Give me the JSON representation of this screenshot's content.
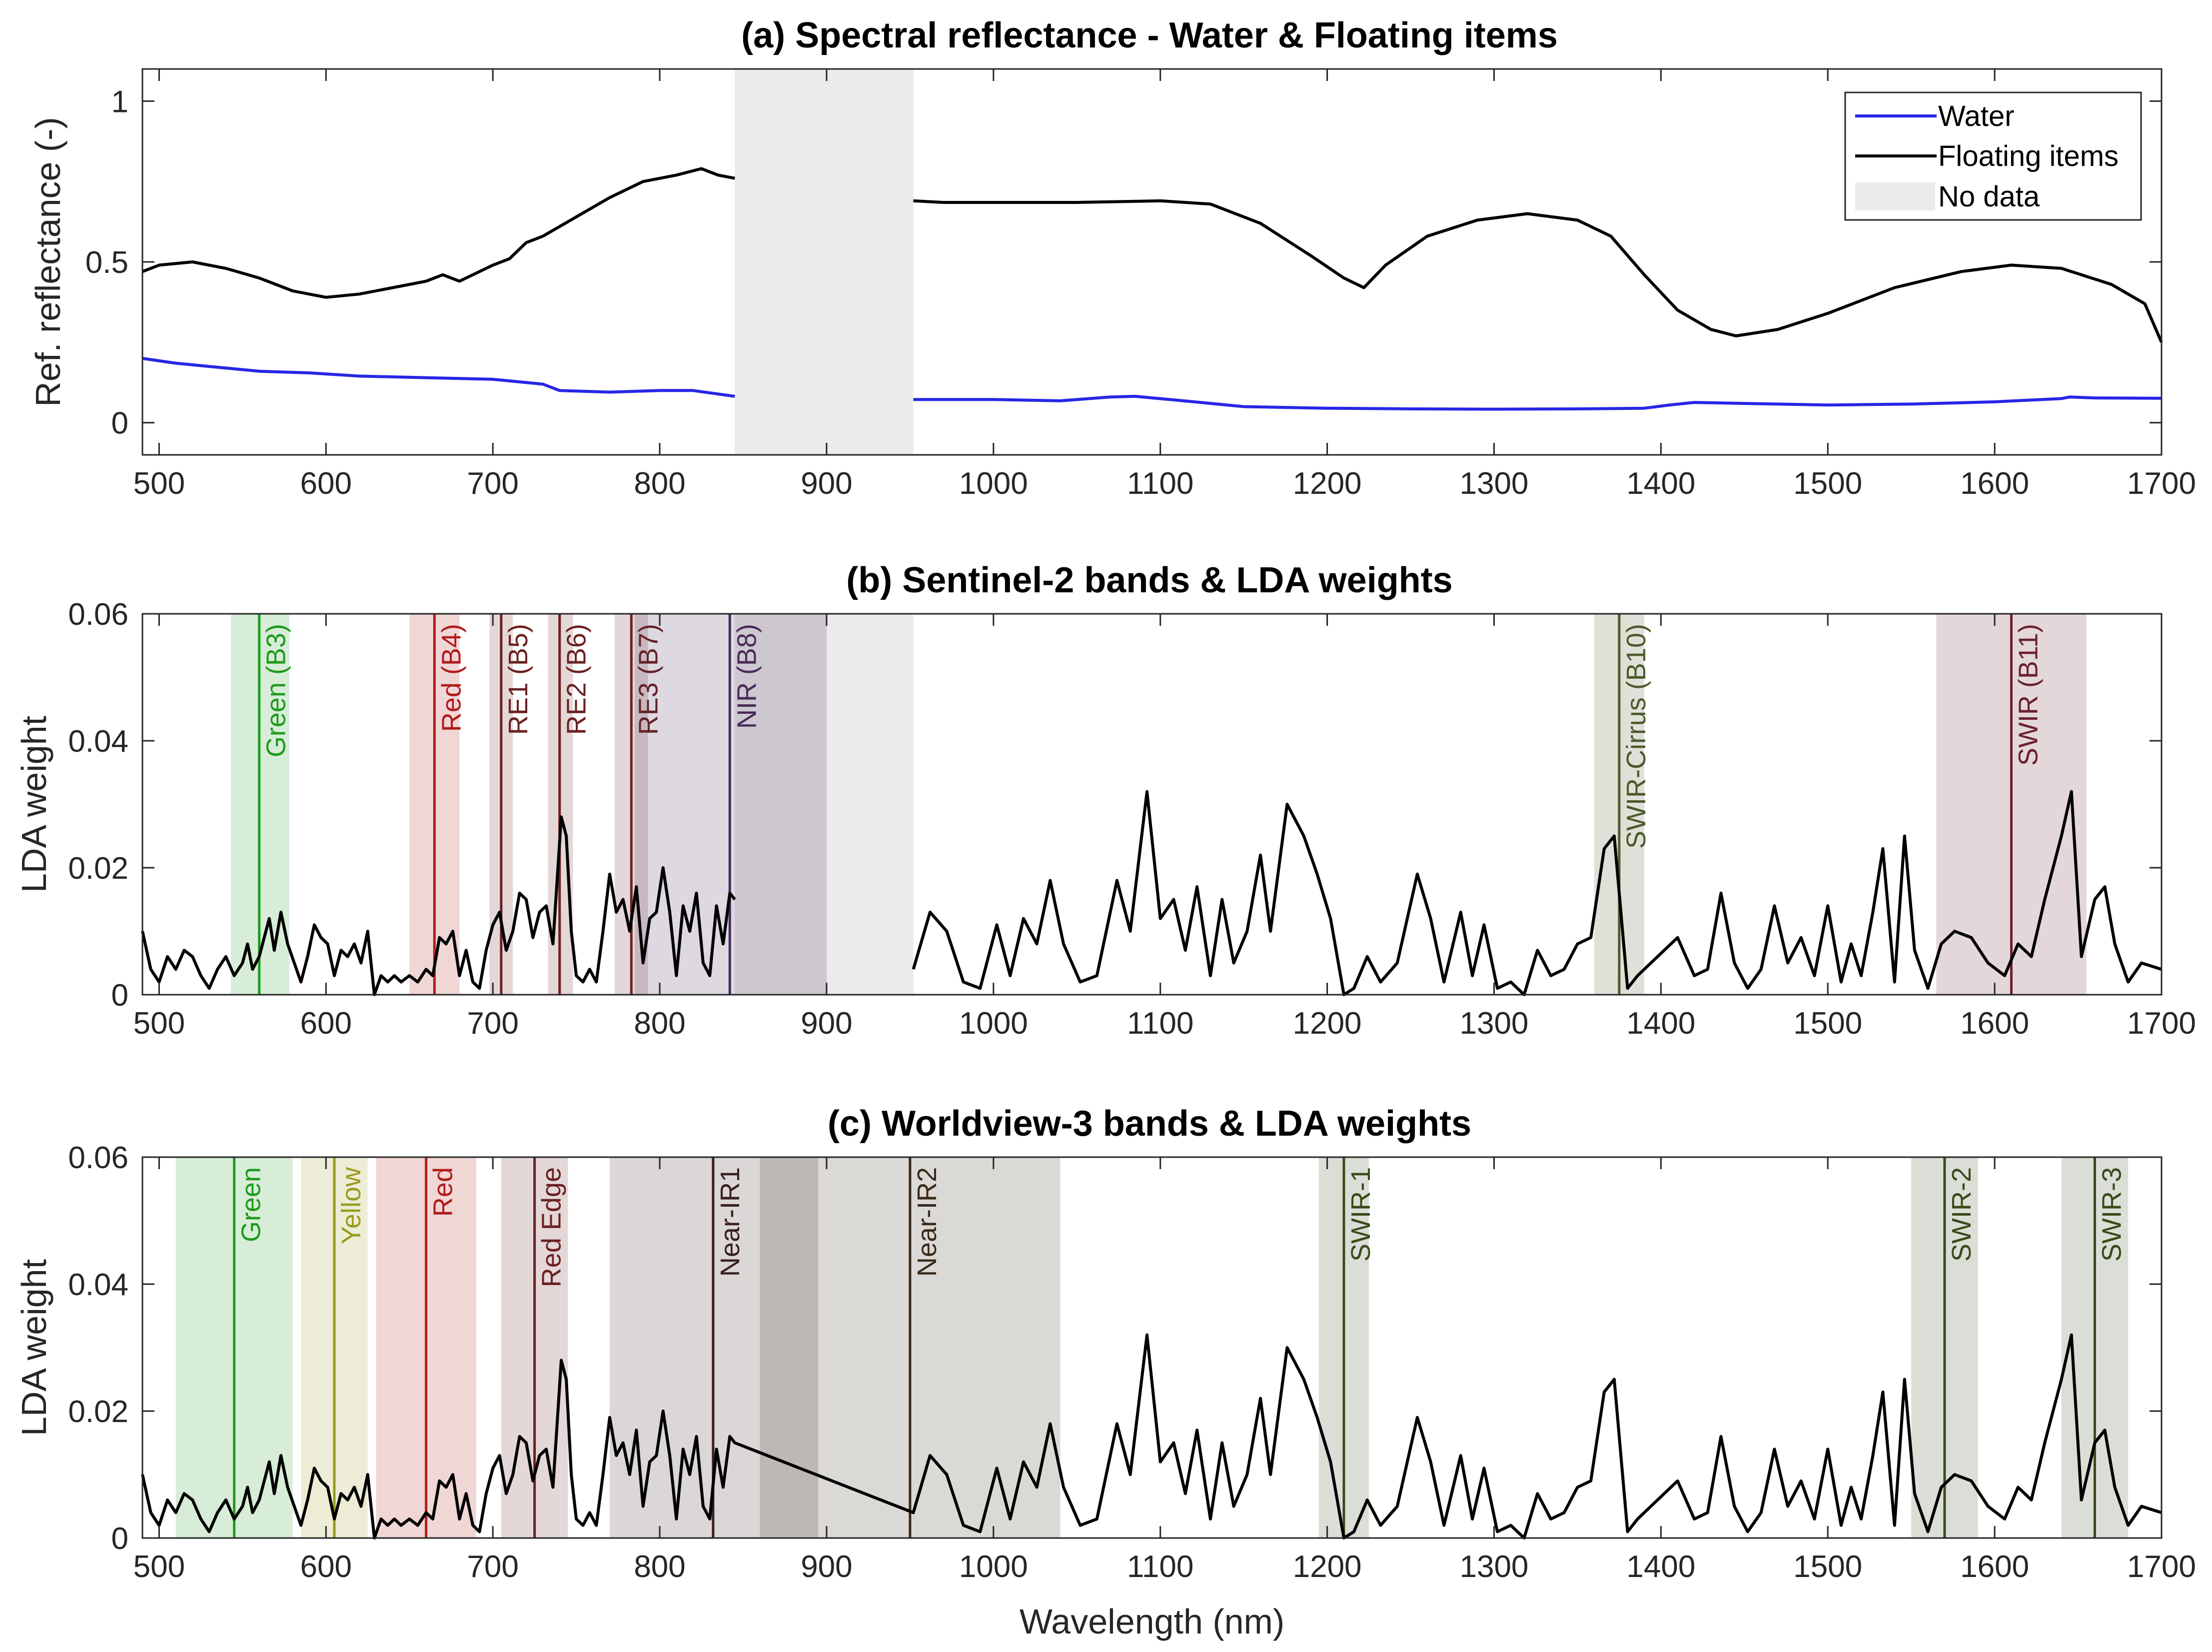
{
  "chart_data": [
    {
      "type": "line",
      "title": "(a) Spectral reflectance - Water & Floating items",
      "xlabel": "",
      "ylabel": "Ref. reflectance (-)",
      "xlim": [
        490,
        1700
      ],
      "ylim": [
        -0.1,
        1.1
      ],
      "xticks": [
        500,
        600,
        700,
        800,
        900,
        1000,
        1100,
        1200,
        1300,
        1400,
        1500,
        1600,
        1700
      ],
      "yticks": [
        0,
        0.5,
        1
      ],
      "ytick_labels": [
        "0",
        "0.5",
        "1"
      ],
      "no_data": [
        845,
        952
      ],
      "legend": [
        "Water",
        "Floating items",
        "No data"
      ],
      "legend_position": "top-right",
      "series": [
        {
          "name": "Water",
          "color": "#2626e6",
          "points": [
            [
              490,
              0.2
            ],
            [
              510,
              0.185
            ],
            [
              530,
              0.175
            ],
            [
              560,
              0.16
            ],
            [
              590,
              0.155
            ],
            [
              620,
              0.145
            ],
            [
              660,
              0.14
            ],
            [
              700,
              0.135
            ],
            [
              730,
              0.12
            ],
            [
              740,
              0.1
            ],
            [
              770,
              0.095
            ],
            [
              800,
              0.1
            ],
            [
              820,
              0.1
            ],
            [
              845,
              0.082
            ],
            [
              952,
              0.072
            ],
            [
              1000,
              0.072
            ],
            [
              1040,
              0.068
            ],
            [
              1070,
              0.08
            ],
            [
              1085,
              0.082
            ],
            [
              1110,
              0.07
            ],
            [
              1150,
              0.05
            ],
            [
              1200,
              0.045
            ],
            [
              1250,
              0.043
            ],
            [
              1300,
              0.042
            ],
            [
              1350,
              0.043
            ],
            [
              1390,
              0.045
            ],
            [
              1405,
              0.055
            ],
            [
              1420,
              0.063
            ],
            [
              1450,
              0.06
            ],
            [
              1500,
              0.055
            ],
            [
              1550,
              0.058
            ],
            [
              1600,
              0.065
            ],
            [
              1640,
              0.075
            ],
            [
              1645,
              0.08
            ],
            [
              1660,
              0.077
            ],
            [
              1700,
              0.076
            ]
          ]
        },
        {
          "name": "Floating items",
          "color": "#000000",
          "points": [
            [
              490,
              0.47
            ],
            [
              500,
              0.49
            ],
            [
              520,
              0.5
            ],
            [
              540,
              0.48
            ],
            [
              560,
              0.45
            ],
            [
              580,
              0.41
            ],
            [
              600,
              0.39
            ],
            [
              620,
              0.4
            ],
            [
              640,
              0.42
            ],
            [
              660,
              0.44
            ],
            [
              670,
              0.46
            ],
            [
              680,
              0.44
            ],
            [
              700,
              0.49
            ],
            [
              710,
              0.51
            ],
            [
              720,
              0.56
            ],
            [
              730,
              0.58
            ],
            [
              750,
              0.64
            ],
            [
              770,
              0.7
            ],
            [
              790,
              0.75
            ],
            [
              810,
              0.77
            ],
            [
              825,
              0.79
            ],
            [
              835,
              0.77
            ],
            [
              845,
              0.76
            ],
            [
              952,
              0.69
            ],
            [
              970,
              0.685
            ],
            [
              1000,
              0.685
            ],
            [
              1050,
              0.685
            ],
            [
              1100,
              0.69
            ],
            [
              1130,
              0.68
            ],
            [
              1160,
              0.62
            ],
            [
              1190,
              0.52
            ],
            [
              1210,
              0.45
            ],
            [
              1222,
              0.42
            ],
            [
              1235,
              0.49
            ],
            [
              1260,
              0.58
            ],
            [
              1290,
              0.63
            ],
            [
              1320,
              0.65
            ],
            [
              1350,
              0.63
            ],
            [
              1370,
              0.58
            ],
            [
              1390,
              0.46
            ],
            [
              1410,
              0.35
            ],
            [
              1430,
              0.29
            ],
            [
              1445,
              0.27
            ],
            [
              1470,
              0.29
            ],
            [
              1500,
              0.34
            ],
            [
              1540,
              0.42
            ],
            [
              1580,
              0.47
            ],
            [
              1610,
              0.49
            ],
            [
              1640,
              0.48
            ],
            [
              1670,
              0.43
            ],
            [
              1690,
              0.37
            ],
            [
              1700,
              0.25
            ]
          ]
        }
      ]
    },
    {
      "type": "line",
      "title": "(b) Sentinel-2 bands & LDA weights",
      "xlabel": "",
      "ylabel": "LDA weight",
      "xlim": [
        490,
        1700
      ],
      "ylim": [
        0,
        0.06
      ],
      "xticks": [
        500,
        600,
        700,
        800,
        900,
        1000,
        1100,
        1200,
        1300,
        1400,
        1500,
        1600,
        1700
      ],
      "yticks": [
        0,
        0.02,
        0.04,
        0.06
      ],
      "ytick_labels": [
        "0",
        "0.02",
        "0.04",
        "0.06"
      ],
      "no_data": [
        845,
        952
      ],
      "bands": [
        {
          "label": "Green (B3)",
          "center": 560,
          "lo": 543,
          "hi": 578,
          "color": "#1f9a1f"
        },
        {
          "label": "Red (B4)",
          "center": 665,
          "lo": 650,
          "hi": 680,
          "color": "#b01c1c"
        },
        {
          "label": "RE1 (B5)",
          "center": 705,
          "lo": 698,
          "hi": 712,
          "color": "#6b2020"
        },
        {
          "label": "RE2 (B6)",
          "center": 740,
          "lo": 733,
          "hi": 748,
          "color": "#6b2020"
        },
        {
          "label": "RE3 (B7)",
          "center": 783,
          "lo": 773,
          "hi": 793,
          "color": "#6b2020"
        },
        {
          "label": "NIR (B8)",
          "center": 842,
          "lo": 785,
          "hi": 900,
          "color": "#4a2a5a"
        },
        {
          "label": "SWIR-Cirrus (B10)",
          "center": 1375,
          "lo": 1360,
          "hi": 1390,
          "color": "#4b5a2a"
        },
        {
          "label": "SWIR (B11)",
          "center": 1610,
          "lo": 1565,
          "hi": 1655,
          "color": "#6b2030"
        }
      ]
    },
    {
      "type": "line",
      "title": "(c) Worldview-3 bands & LDA weights",
      "xlabel": "Wavelength (nm)",
      "ylabel": "LDA weight",
      "xlim": [
        490,
        1700
      ],
      "ylim": [
        0,
        0.06
      ],
      "xticks": [
        500,
        600,
        700,
        800,
        900,
        1000,
        1100,
        1200,
        1300,
        1400,
        1500,
        1600,
        1700
      ],
      "yticks": [
        0,
        0.02,
        0.04,
        0.06
      ],
      "ytick_labels": [
        "0",
        "0.02",
        "0.04",
        "0.06"
      ],
      "bands": [
        {
          "label": "Green",
          "center": 545,
          "lo": 510,
          "hi": 580,
          "color": "#1f9a1f"
        },
        {
          "label": "Yellow",
          "center": 605,
          "lo": 585,
          "hi": 625,
          "color": "#9a9a1f"
        },
        {
          "label": "Red",
          "center": 660,
          "lo": 630,
          "hi": 690,
          "color": "#b01c1c"
        },
        {
          "label": "Red Edge",
          "center": 725,
          "lo": 705,
          "hi": 745,
          "color": "#6b2020"
        },
        {
          "label": "Near-IR1",
          "center": 832,
          "lo": 770,
          "hi": 895,
          "color": "#3a1f1f"
        },
        {
          "label": "Near-IR2",
          "center": 950,
          "lo": 860,
          "hi": 1040,
          "color": "#3a2a1a"
        },
        {
          "label": "SWIR-1",
          "center": 1210,
          "lo": 1195,
          "hi": 1225,
          "color": "#3a4a1a"
        },
        {
          "label": "SWIR-2",
          "center": 1570,
          "lo": 1550,
          "hi": 1590,
          "color": "#3a4a1a"
        },
        {
          "label": "SWIR-3",
          "center": 1660,
          "lo": 1640,
          "hi": 1680,
          "color": "#3a4a1a"
        }
      ]
    }
  ],
  "lda_weights": [
    [
      490,
      0.01
    ],
    [
      495,
      0.004
    ],
    [
      500,
      0.002
    ],
    [
      505,
      0.006
    ],
    [
      510,
      0.004
    ],
    [
      515,
      0.007
    ],
    [
      520,
      0.006
    ],
    [
      525,
      0.003
    ],
    [
      530,
      0.001
    ],
    [
      535,
      0.004
    ],
    [
      540,
      0.006
    ],
    [
      545,
      0.003
    ],
    [
      550,
      0.005
    ],
    [
      553,
      0.008
    ],
    [
      556,
      0.004
    ],
    [
      560,
      0.006
    ],
    [
      563,
      0.009
    ],
    [
      566,
      0.012
    ],
    [
      569,
      0.007
    ],
    [
      573,
      0.013
    ],
    [
      577,
      0.008
    ],
    [
      581,
      0.005
    ],
    [
      585,
      0.002
    ],
    [
      589,
      0.006
    ],
    [
      593,
      0.011
    ],
    [
      597,
      0.009
    ],
    [
      601,
      0.008
    ],
    [
      605,
      0.003
    ],
    [
      609,
      0.007
    ],
    [
      613,
      0.006
    ],
    [
      617,
      0.008
    ],
    [
      621,
      0.005
    ],
    [
      625,
      0.01
    ],
    [
      629,
      0.0
    ],
    [
      633,
      0.003
    ],
    [
      637,
      0.002
    ],
    [
      641,
      0.003
    ],
    [
      645,
      0.002
    ],
    [
      650,
      0.003
    ],
    [
      655,
      0.002
    ],
    [
      660,
      0.004
    ],
    [
      664,
      0.003
    ],
    [
      668,
      0.009
    ],
    [
      672,
      0.008
    ],
    [
      676,
      0.01
    ],
    [
      680,
      0.003
    ],
    [
      684,
      0.007
    ],
    [
      688,
      0.002
    ],
    [
      692,
      0.001
    ],
    [
      696,
      0.007
    ],
    [
      700,
      0.011
    ],
    [
      704,
      0.013
    ],
    [
      708,
      0.007
    ],
    [
      712,
      0.01
    ],
    [
      716,
      0.016
    ],
    [
      720,
      0.015
    ],
    [
      724,
      0.009
    ],
    [
      728,
      0.013
    ],
    [
      732,
      0.014
    ],
    [
      736,
      0.008
    ],
    [
      739,
      0.02
    ],
    [
      741,
      0.028
    ],
    [
      744,
      0.025
    ],
    [
      747,
      0.01
    ],
    [
      750,
      0.003
    ],
    [
      754,
      0.002
    ],
    [
      758,
      0.004
    ],
    [
      762,
      0.002
    ],
    [
      766,
      0.01
    ],
    [
      770,
      0.019
    ],
    [
      774,
      0.013
    ],
    [
      778,
      0.015
    ],
    [
      782,
      0.01
    ],
    [
      786,
      0.017
    ],
    [
      790,
      0.005
    ],
    [
      794,
      0.012
    ],
    [
      798,
      0.013
    ],
    [
      802,
      0.02
    ],
    [
      806,
      0.013
    ],
    [
      810,
      0.003
    ],
    [
      814,
      0.014
    ],
    [
      818,
      0.01
    ],
    [
      822,
      0.016
    ],
    [
      826,
      0.005
    ],
    [
      830,
      0.003
    ],
    [
      834,
      0.014
    ],
    [
      838,
      0.008
    ],
    [
      842,
      0.016
    ],
    [
      845,
      0.015
    ],
    [
      952,
      0.004
    ],
    [
      962,
      0.013
    ],
    [
      972,
      0.01
    ],
    [
      982,
      0.002
    ],
    [
      992,
      0.001
    ],
    [
      1002,
      0.011
    ],
    [
      1010,
      0.003
    ],
    [
      1018,
      0.012
    ],
    [
      1026,
      0.008
    ],
    [
      1034,
      0.018
    ],
    [
      1042,
      0.008
    ],
    [
      1052,
      0.002
    ],
    [
      1062,
      0.003
    ],
    [
      1074,
      0.018
    ],
    [
      1082,
      0.01
    ],
    [
      1092,
      0.032
    ],
    [
      1100,
      0.012
    ],
    [
      1108,
      0.015
    ],
    [
      1115,
      0.007
    ],
    [
      1122,
      0.017
    ],
    [
      1130,
      0.003
    ],
    [
      1137,
      0.015
    ],
    [
      1144,
      0.005
    ],
    [
      1152,
      0.01
    ],
    [
      1160,
      0.022
    ],
    [
      1166,
      0.01
    ],
    [
      1176,
      0.03
    ],
    [
      1186,
      0.025
    ],
    [
      1194,
      0.019
    ],
    [
      1202,
      0.012
    ],
    [
      1210,
      0.0
    ],
    [
      1216,
      0.001
    ],
    [
      1224,
      0.006
    ],
    [
      1232,
      0.002
    ],
    [
      1242,
      0.005
    ],
    [
      1254,
      0.019
    ],
    [
      1262,
      0.012
    ],
    [
      1270,
      0.002
    ],
    [
      1280,
      0.013
    ],
    [
      1287,
      0.003
    ],
    [
      1294,
      0.011
    ],
    [
      1302,
      0.001
    ],
    [
      1310,
      0.002
    ],
    [
      1318,
      0.0
    ],
    [
      1326,
      0.007
    ],
    [
      1334,
      0.003
    ],
    [
      1342,
      0.004
    ],
    [
      1350,
      0.008
    ],
    [
      1358,
      0.009
    ],
    [
      1366,
      0.023
    ],
    [
      1372,
      0.025
    ],
    [
      1380,
      0.001
    ],
    [
      1386,
      0.003
    ],
    [
      1394,
      0.005
    ],
    [
      1402,
      0.007
    ],
    [
      1410,
      0.009
    ],
    [
      1420,
      0.003
    ],
    [
      1428,
      0.004
    ],
    [
      1436,
      0.016
    ],
    [
      1444,
      0.005
    ],
    [
      1452,
      0.001
    ],
    [
      1460,
      0.004
    ],
    [
      1468,
      0.014
    ],
    [
      1476,
      0.005
    ],
    [
      1484,
      0.009
    ],
    [
      1492,
      0.003
    ],
    [
      1500,
      0.014
    ],
    [
      1508,
      0.002
    ],
    [
      1514,
      0.008
    ],
    [
      1520,
      0.003
    ],
    [
      1527,
      0.013
    ],
    [
      1533,
      0.023
    ],
    [
      1540,
      0.002
    ],
    [
      1546,
      0.025
    ],
    [
      1552,
      0.007
    ],
    [
      1560,
      0.001
    ],
    [
      1568,
      0.008
    ],
    [
      1576,
      0.01
    ],
    [
      1586,
      0.009
    ],
    [
      1596,
      0.005
    ],
    [
      1606,
      0.003
    ],
    [
      1614,
      0.008
    ],
    [
      1622,
      0.006
    ],
    [
      1630,
      0.015
    ],
    [
      1640,
      0.025
    ],
    [
      1646,
      0.032
    ],
    [
      1652,
      0.006
    ],
    [
      1660,
      0.015
    ],
    [
      1666,
      0.017
    ],
    [
      1672,
      0.008
    ],
    [
      1680,
      0.002
    ],
    [
      1688,
      0.005
    ],
    [
      1700,
      0.004
    ]
  ]
}
